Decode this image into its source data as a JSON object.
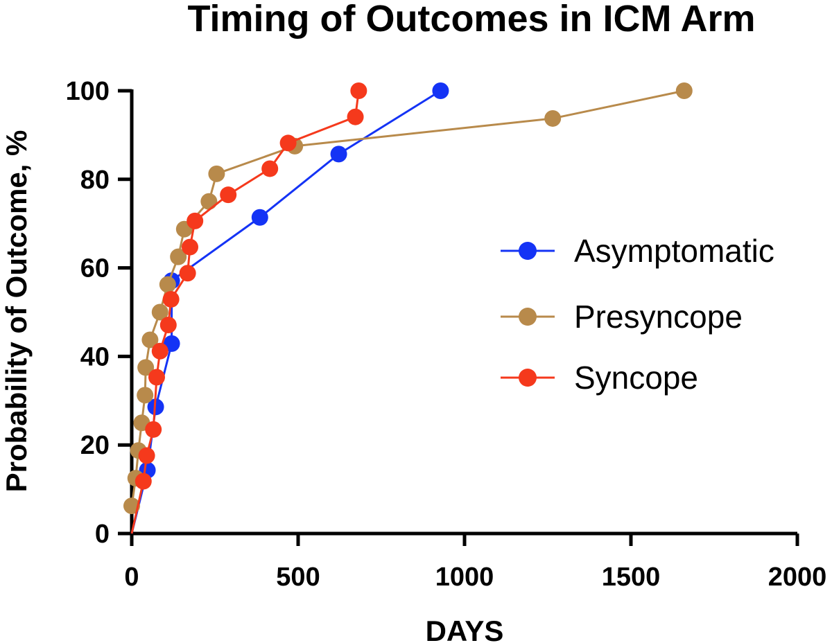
{
  "chart_data": {
    "type": "line",
    "title": "Timing of Outcomes in ICM Arm",
    "xlabel": "DAYS",
    "ylabel": "Probability of Outcome, %",
    "xlim": [
      0,
      2000
    ],
    "ylim": [
      0,
      100
    ],
    "xticks": [
      "0",
      "500",
      "1000",
      "1500",
      "2000"
    ],
    "yticks": [
      "0",
      "20",
      "40",
      "60",
      "80",
      "100"
    ],
    "xtick_values": [
      0,
      500,
      1000,
      1500,
      2000
    ],
    "ytick_values": [
      0,
      20,
      40,
      60,
      80,
      100
    ],
    "grid": false,
    "legend_position": "right",
    "series": [
      {
        "name": "Asymptomatic",
        "color": "#1433f5",
        "points": [
          [
            0,
            0
          ],
          [
            47,
            14.3
          ],
          [
            72,
            28.6
          ],
          [
            120,
            42.9
          ],
          [
            120,
            57.1
          ],
          [
            385,
            71.4
          ],
          [
            622,
            85.7
          ],
          [
            928,
            100
          ]
        ]
      },
      {
        "name": "Presyncope",
        "color": "#b88a4b",
        "points": [
          [
            0,
            6.25
          ],
          [
            12,
            12.5
          ],
          [
            20,
            18.75
          ],
          [
            30,
            25
          ],
          [
            40,
            31.25
          ],
          [
            42,
            37.5
          ],
          [
            55,
            43.75
          ],
          [
            85,
            50
          ],
          [
            108,
            56.25
          ],
          [
            140,
            62.5
          ],
          [
            158,
            68.75
          ],
          [
            232,
            75
          ],
          [
            255,
            81.25
          ],
          [
            490,
            87.5
          ],
          [
            1265,
            93.75
          ],
          [
            1660,
            100
          ]
        ]
      },
      {
        "name": "Syncope",
        "color": "#f5391c",
        "points": [
          [
            0,
            0
          ],
          [
            35,
            11.8
          ],
          [
            45,
            17.6
          ],
          [
            65,
            23.5
          ],
          [
            75,
            35.3
          ],
          [
            85,
            41.2
          ],
          [
            110,
            47.1
          ],
          [
            118,
            52.9
          ],
          [
            168,
            58.8
          ],
          [
            175,
            64.7
          ],
          [
            190,
            70.6
          ],
          [
            290,
            76.5
          ],
          [
            415,
            82.4
          ],
          [
            470,
            88.2
          ],
          [
            672,
            94.1
          ],
          [
            682,
            100
          ]
        ]
      }
    ]
  }
}
